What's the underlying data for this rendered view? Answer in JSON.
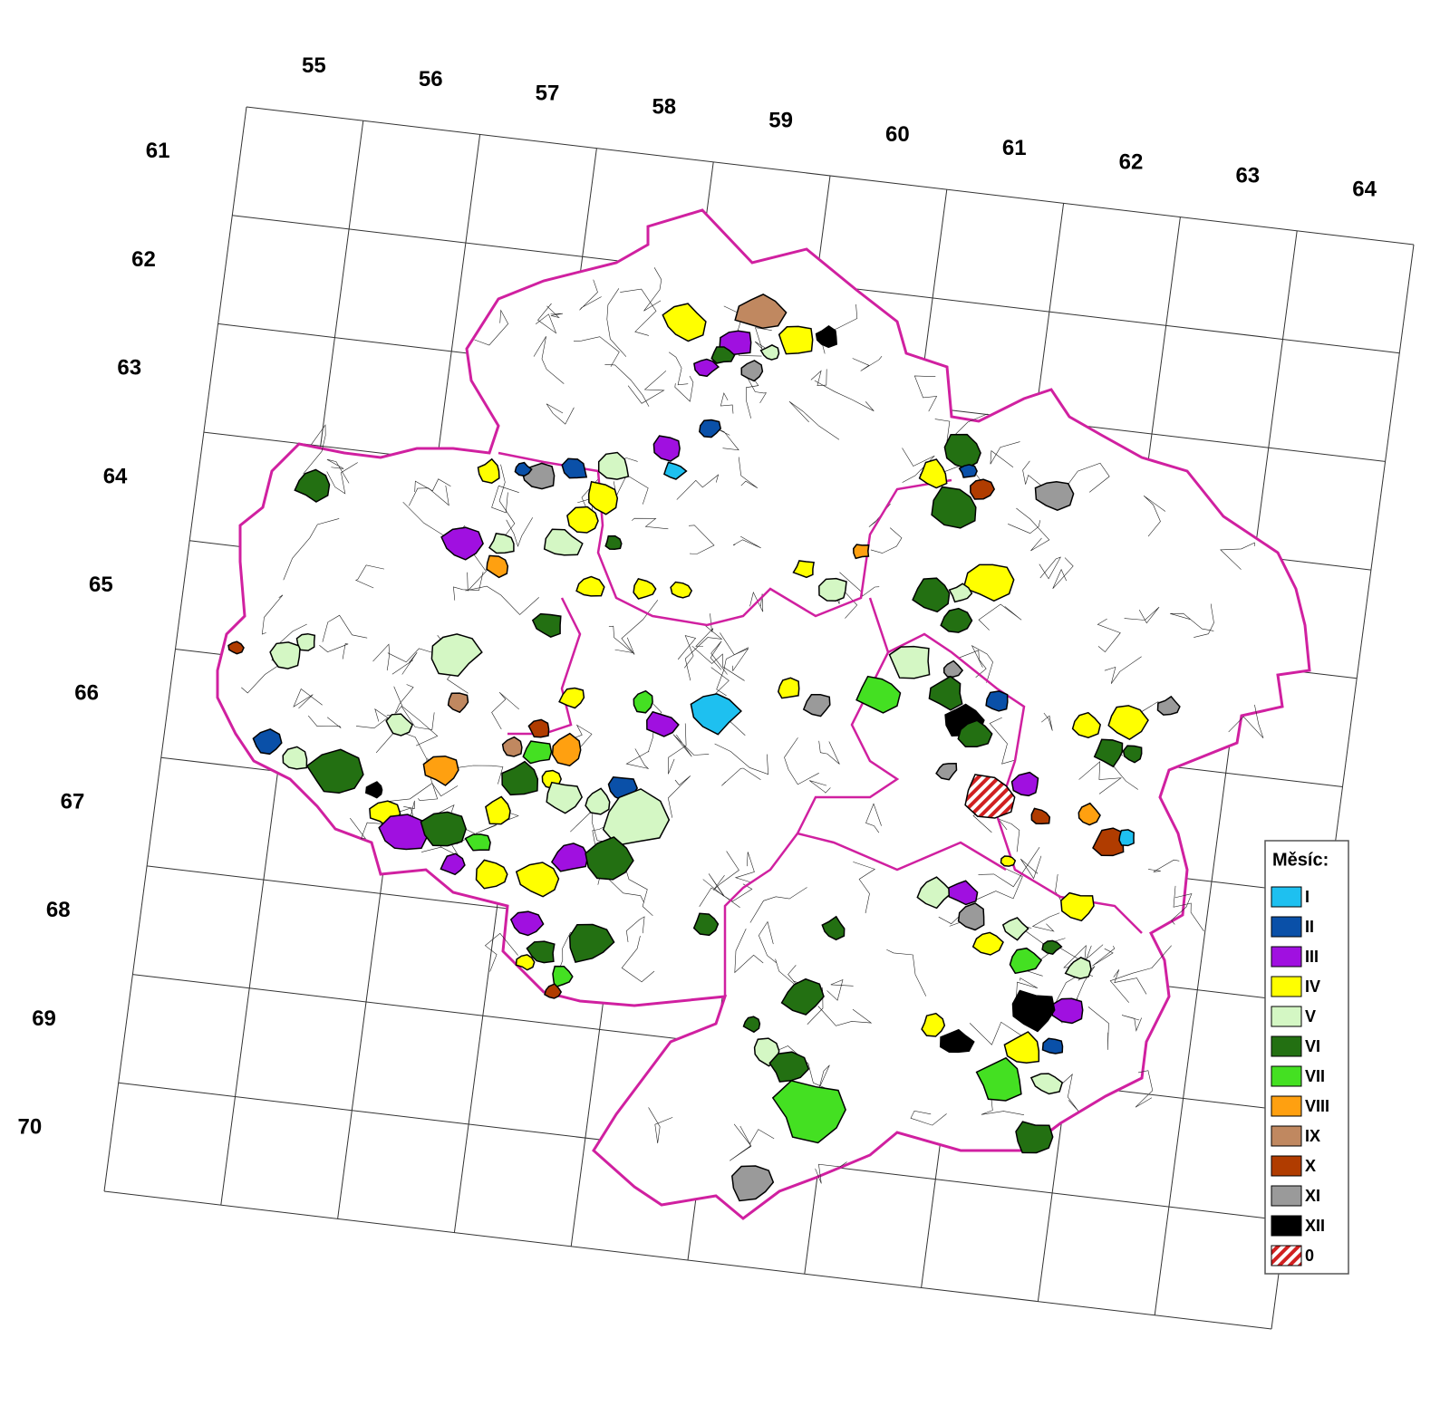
{
  "map": {
    "column_labels": [
      "55",
      "56",
      "57",
      "58",
      "59",
      "60",
      "61",
      "62",
      "63",
      "64"
    ],
    "row_labels": [
      "61",
      "62",
      "63",
      "64",
      "65",
      "66",
      "67",
      "68",
      "69",
      "70"
    ],
    "legend": {
      "title": "Měsíc:",
      "items": [
        {
          "label": "I",
          "color": "#1ec0f0"
        },
        {
          "label": "II",
          "color": "#0a50a8"
        },
        {
          "label": "III",
          "color": "#a010e0"
        },
        {
          "label": "IV",
          "color": "#ffff00"
        },
        {
          "label": "V",
          "color": "#d4f7c4"
        },
        {
          "label": "VI",
          "color": "#237012"
        },
        {
          "label": "VII",
          "color": "#44e022"
        },
        {
          "label": "VIII",
          "color": "#ffa010"
        },
        {
          "label": "IX",
          "color": "#c08860"
        },
        {
          "label": "X",
          "color": "#b03c00"
        },
        {
          "label": "XI",
          "color": "#9a9a9a"
        },
        {
          "label": "XII",
          "color": "#000000"
        },
        {
          "label": "0",
          "color": "#d02020"
        }
      ]
    }
  }
}
